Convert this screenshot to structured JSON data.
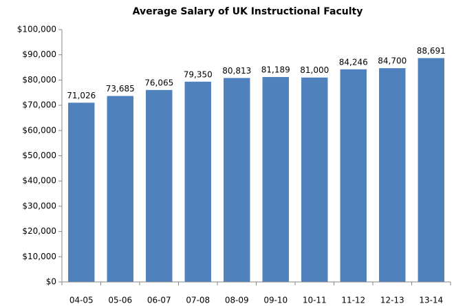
{
  "chart_data": {
    "type": "bar",
    "title": "Average Salary  of UK Instructional Faculty",
    "categories": [
      "04-05",
      "05-06",
      "06-07",
      "07-08",
      "08-09",
      "09-10",
      "10-11",
      "11-12",
      "12-13",
      "13-14"
    ],
    "values": [
      71026,
      73685,
      76065,
      79350,
      80813,
      81189,
      81000,
      84246,
      84700,
      88691
    ],
    "value_labels": [
      "71,026",
      "73,685",
      "76,065",
      "79,350",
      "80,813",
      "81,189",
      "81,000",
      "84,246",
      "84,700",
      "88,691"
    ],
    "color": "#4f81bd",
    "ylim": [
      0,
      100000
    ],
    "yticks": [
      {
        "value": 0,
        "label": "$0"
      },
      {
        "value": 10000,
        "label": "$10,000"
      },
      {
        "value": 20000,
        "label": "$20,000"
      },
      {
        "value": 30000,
        "label": "$30,000"
      },
      {
        "value": 40000,
        "label": "$40,000"
      },
      {
        "value": 50000,
        "label": "$50,000"
      },
      {
        "value": 60000,
        "label": "$60,000"
      },
      {
        "value": 70000,
        "label": "$70,000"
      },
      {
        "value": 80000,
        "label": "$80,000"
      },
      {
        "value": 90000,
        "label": "$90,000"
      },
      {
        "value": 100000,
        "label": "$100,000"
      }
    ],
    "grid": false
  }
}
